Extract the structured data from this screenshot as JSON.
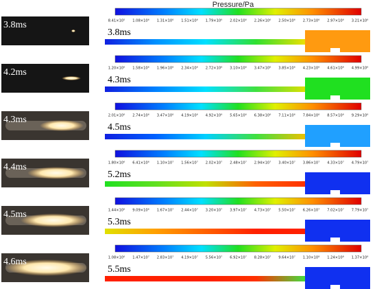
{
  "title": "Pressure/Pa",
  "panels": [
    {
      "photo_label": "3.8ms",
      "sim_label": "3.8ms",
      "colorbar_ticks": [
        "8.41×10⁵",
        "1.08×10⁶",
        "1.31×10⁶",
        "1.51×10⁶",
        "1.79×10⁶",
        "2.02×10⁶",
        "2.26×10⁶",
        "2.50×10⁶",
        "2.73×10⁶",
        "2.97×10⁶",
        "3.21×10⁶"
      ]
    },
    {
      "photo_label": "4.2ms",
      "sim_label": "4.3ms",
      "colorbar_ticks": [
        "1.20×10⁶",
        "1.58×10⁶",
        "1.96×10⁶",
        "2.34×10⁶",
        "2.72×10⁶",
        "3.10×10⁶",
        "3.47×10⁶",
        "3.85×10⁶",
        "4.23×10⁶",
        "4.61×10⁶",
        "4.99×10⁶"
      ]
    },
    {
      "photo_label": "4.3ms",
      "sim_label": "4.5ms",
      "colorbar_ticks": [
        "2.01×10⁶",
        "2.74×10⁶",
        "3.47×10⁶",
        "4.19×10⁶",
        "4.92×10⁶",
        "5.65×10⁶",
        "6.38×10⁶",
        "7.11×10⁶",
        "7.84×10⁶",
        "8.57×10⁶",
        "9.29×10⁶"
      ]
    },
    {
      "photo_label": "4.4ms",
      "sim_label": "5.2ms",
      "colorbar_ticks": [
        "1.80×10⁶",
        "6.41×10⁶",
        "1.10×10⁷",
        "1.56×10⁷",
        "2.02×10⁷",
        "2.48×10⁷",
        "2.94×10⁷",
        "3.40×10⁷",
        "3.86×10⁷",
        "4.33×10⁷",
        "4.79×10⁷"
      ]
    },
    {
      "photo_label": "4.5ms",
      "sim_label": "5.3ms",
      "colorbar_ticks": [
        "1.44×10⁶",
        "9.09×10⁶",
        "1.67×10⁷",
        "2.44×10⁷",
        "3.20×10⁷",
        "3.97×10⁷",
        "4.73×10⁷",
        "5.50×10⁷",
        "6.26×10⁷",
        "7.02×10⁷",
        "7.79×10⁷"
      ]
    },
    {
      "photo_label": "4.6ms",
      "sim_label": "5.5ms",
      "colorbar_ticks": [
        "1.08×10⁶",
        "1.47×10⁷",
        "2.83×10⁷",
        "4.19×10⁷",
        "5.56×10⁷",
        "6.92×10⁷",
        "8.28×10⁷",
        "9.64×10⁷",
        "1.10×10⁸",
        "1.24×10⁸",
        "1.37×10⁸"
      ]
    }
  ]
}
